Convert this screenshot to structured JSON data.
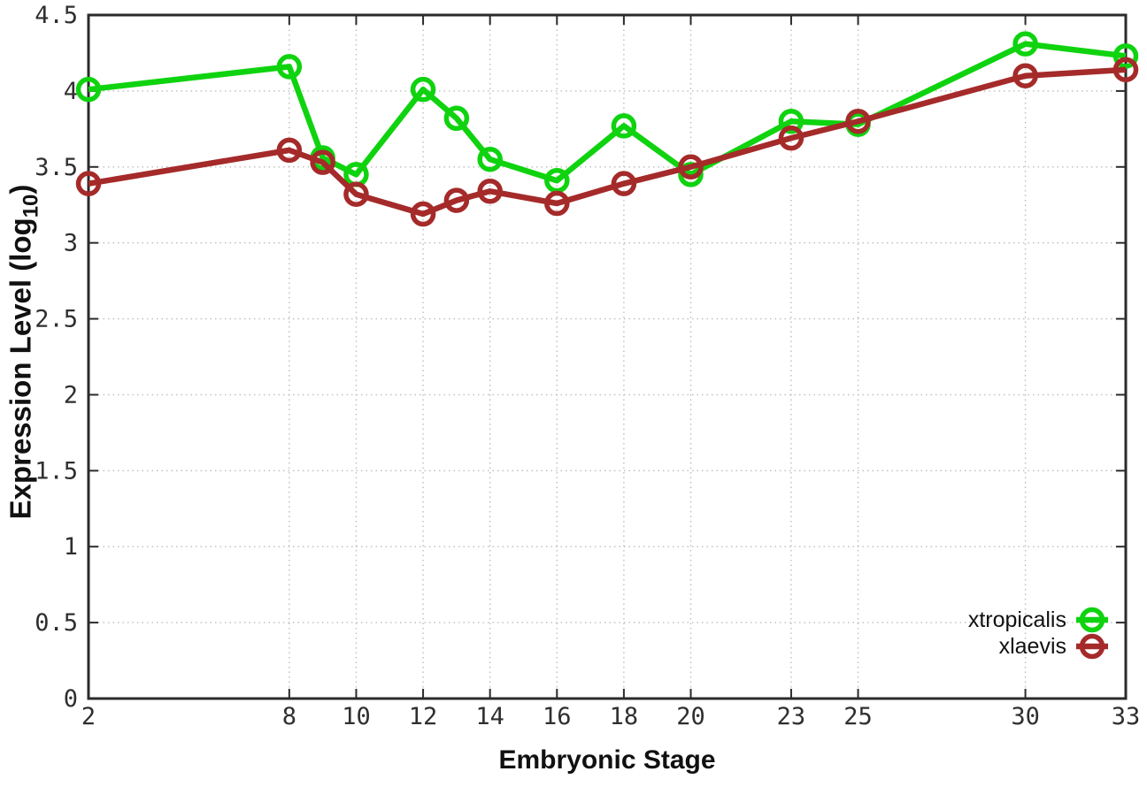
{
  "chart_data": {
    "type": "line",
    "title": "",
    "xlabel": "Embryonic Stage",
    "ylabel": "Expression Level (log10)",
    "ylabel_parts": {
      "pre": "Expression Level (log",
      "sub": "10",
      "post": ")"
    },
    "xlim": [
      2,
      33
    ],
    "ylim": [
      0,
      4.5
    ],
    "grid": true,
    "legend_position": "bottom-right",
    "x_ticks": {
      "values": [
        2,
        8,
        10,
        12,
        14,
        16,
        18,
        20,
        23,
        25,
        30,
        33
      ],
      "labels": [
        "2",
        "8",
        "10",
        "12",
        "14",
        "16",
        "18",
        "20",
        "23",
        "25",
        "30",
        "33"
      ]
    },
    "y_ticks": {
      "values": [
        0,
        0.5,
        1,
        1.5,
        2,
        2.5,
        3,
        3.5,
        4,
        4.5
      ],
      "labels": [
        "0",
        "0.5",
        "1",
        "1.5",
        "2",
        "2.5",
        "3",
        "3.5",
        "4",
        "4.5"
      ]
    },
    "x": [
      2,
      8,
      9,
      10,
      12,
      13,
      14,
      16,
      18,
      20,
      23,
      25,
      30,
      33
    ],
    "series": [
      {
        "name": "xtropicalis",
        "color": "#0fd30f",
        "values": [
          4.01,
          4.16,
          3.56,
          3.45,
          4.01,
          3.82,
          3.55,
          3.41,
          3.77,
          3.45,
          3.8,
          3.78,
          4.31,
          4.23
        ]
      },
      {
        "name": "xlaevis",
        "color": "#a52a2a",
        "values": [
          3.39,
          3.61,
          3.53,
          3.32,
          3.19,
          3.28,
          3.34,
          3.26,
          3.39,
          3.5,
          3.69,
          3.8,
          4.1,
          4.14
        ]
      }
    ],
    "style": {
      "background": "#ffffff",
      "border_color": "#2b2b2b",
      "grid_color": "#bdbdbd",
      "tick_label_color": "#2f2f2f",
      "marker": "open-circle",
      "line_width": 6.5,
      "marker_radius": 11.5
    }
  }
}
